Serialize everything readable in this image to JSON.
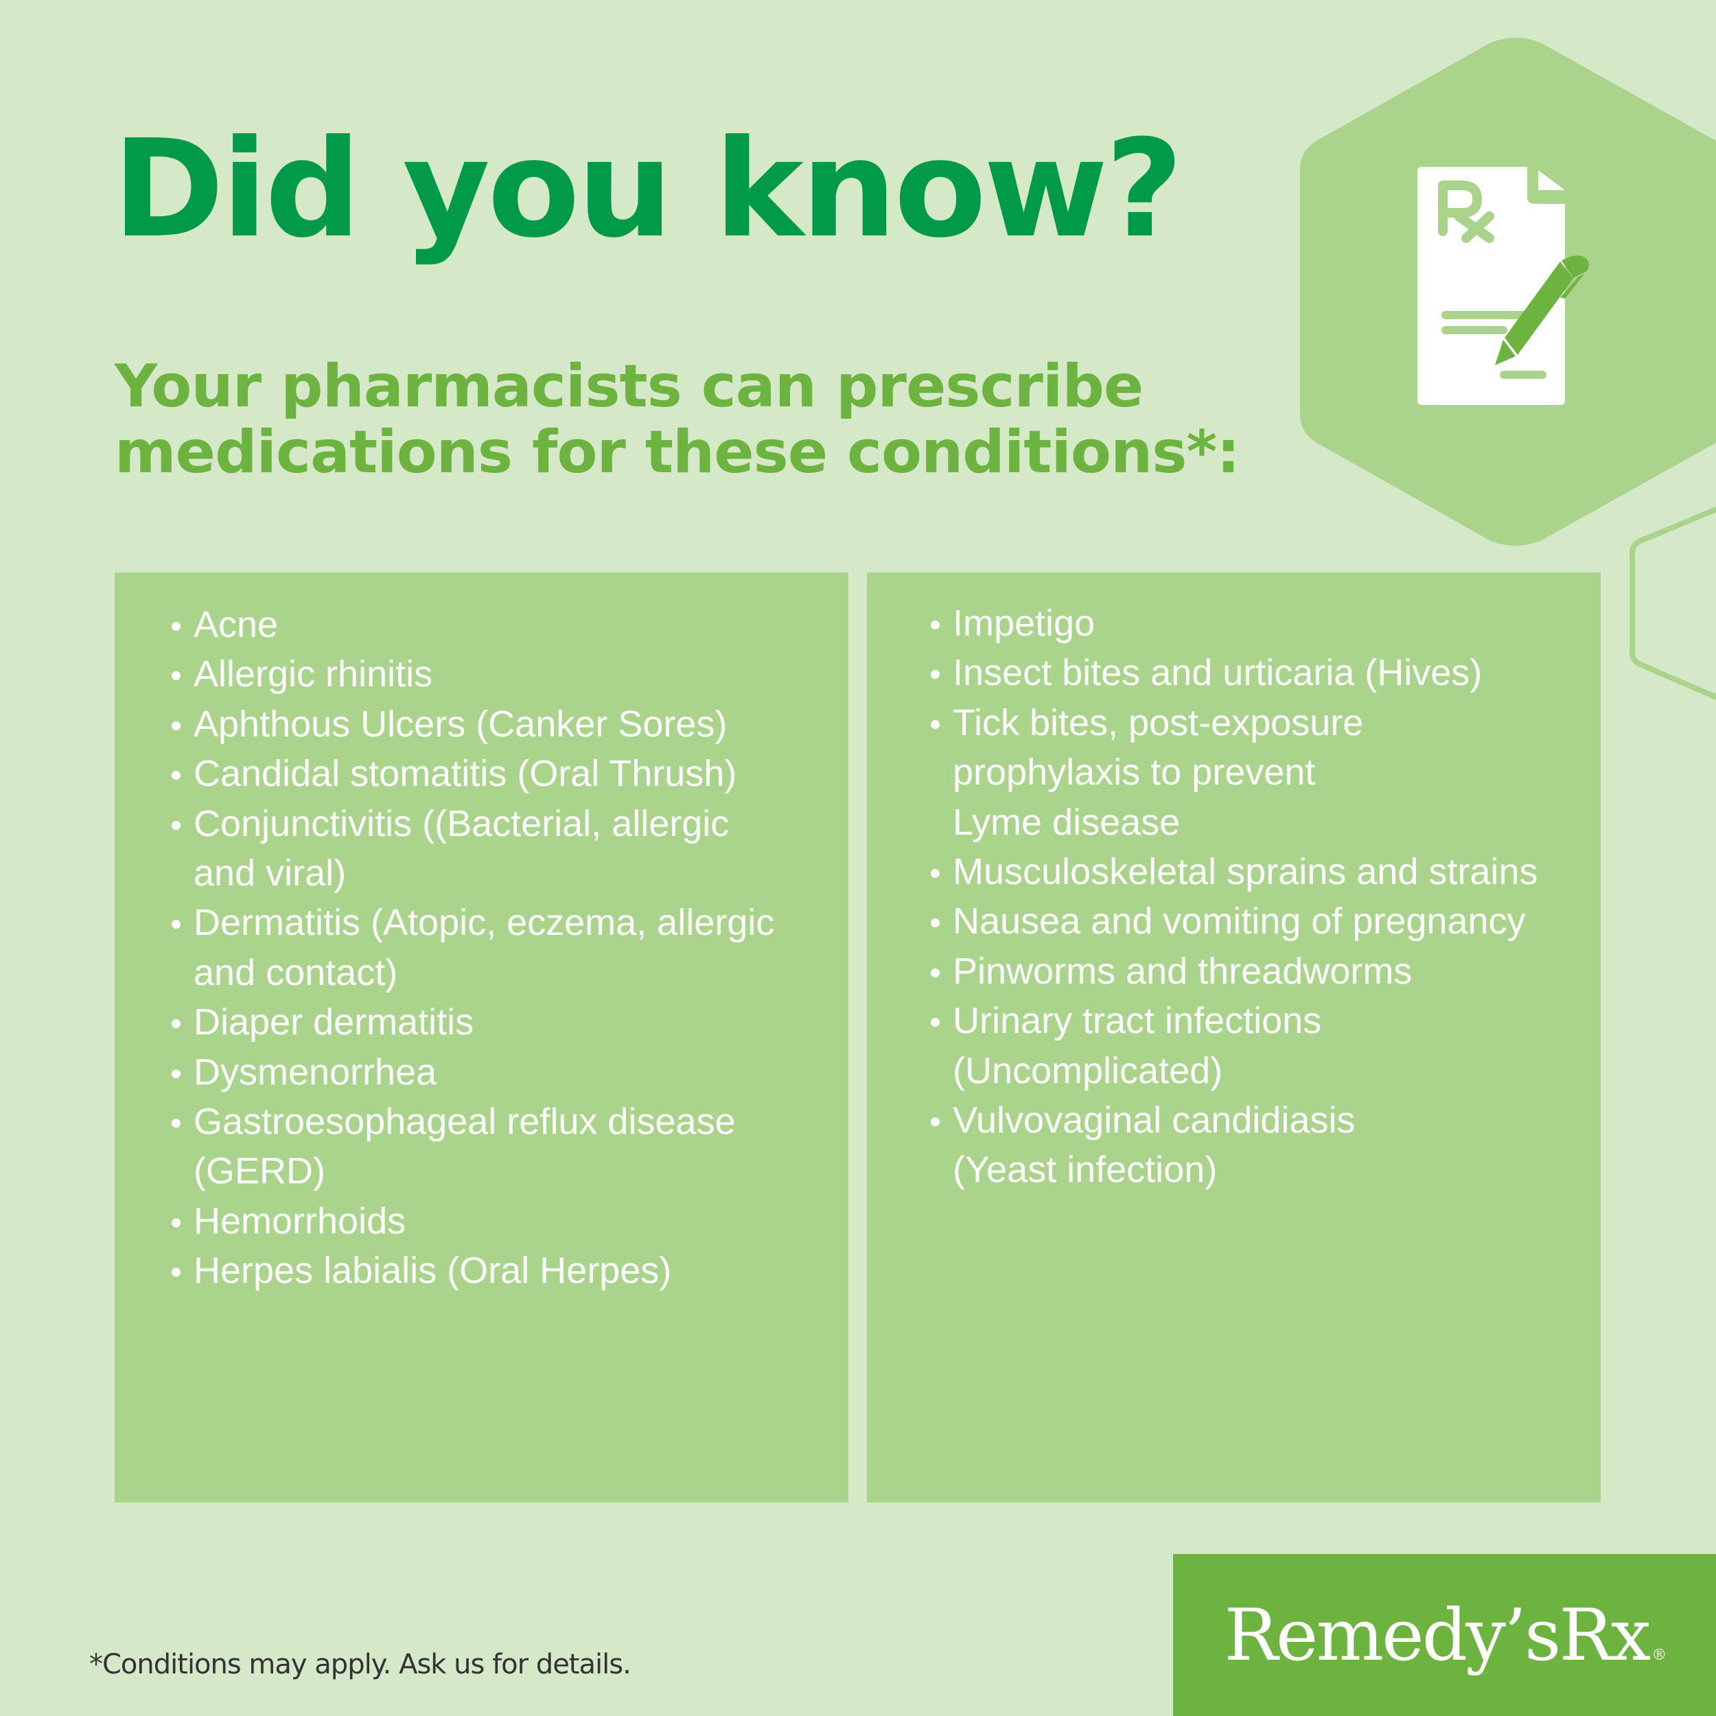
{
  "header": {
    "title": "Did you know?",
    "subtitle_line1": "Your pharmacists can prescribe",
    "subtitle_line2": "medications for these conditions*:"
  },
  "icon": {
    "name": "prescription-pen-icon",
    "symbol": "Rx"
  },
  "conditions_left": [
    "Acne",
    "Allergic rhinitis",
    "Aphthous Ulcers (Canker Sores)",
    "Candidal stomatitis (Oral Thrush)",
    "Conjunctivitis ((Bacterial, allergic\nand viral)",
    "Dermatitis (Atopic, eczema, allergic\nand contact)",
    "Diaper dermatitis",
    "Dysmenorrhea",
    "Gastroesophageal reflux disease\n(GERD)",
    "Hemorrhoids",
    "Herpes labialis (Oral Herpes)"
  ],
  "conditions_right": [
    "Impetigo",
    "Insect bites and urticaria (Hives)",
    "Tick bites, post-exposure\nprophylaxis to prevent\nLyme disease",
    "Musculoskeletal sprains and strains",
    "Nausea and vomiting of pregnancy",
    "Pinworms and threadworms",
    "Urinary tract infections\n(Uncomplicated)",
    "Vulvovaginal candidiasis\n(Yeast infection)"
  ],
  "footnote": "*Conditions may apply. Ask us for details.",
  "brand": {
    "logo_text": "Remedy’sRx",
    "registered": "®"
  },
  "colors": {
    "background": "#d5e8c8",
    "title": "#009a48",
    "accent": "#6db33f",
    "panel": "#aad48c"
  }
}
